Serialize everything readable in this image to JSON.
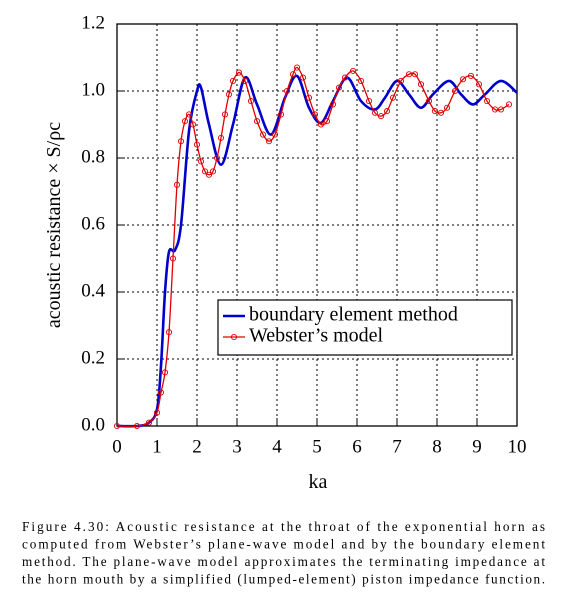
{
  "chart_data": {
    "type": "line",
    "xlabel": "ka",
    "ylabel": "acoustic resistance × S/ρc",
    "xlim": [
      0,
      10
    ],
    "ylim": [
      0,
      1.2
    ],
    "xticks": [
      0,
      1,
      2,
      3,
      4,
      5,
      6,
      7,
      8,
      9,
      10
    ],
    "yticks": [
      {
        "value": 0,
        "label": "0.0"
      },
      0.2,
      0.4,
      0.6,
      0.8,
      {
        "value": 1,
        "label": "1.0"
      },
      1.2
    ],
    "grid": true,
    "legend": "lower right",
    "series": [
      {
        "name": "boundary element method",
        "color": "#0000cc",
        "marker": false,
        "x": [
          0,
          0.5,
          0.8,
          1.0,
          1.1,
          1.2,
          1.3,
          1.45,
          1.6,
          1.8,
          2.0,
          2.1,
          2.3,
          2.6,
          2.9,
          3.2,
          3.5,
          3.85,
          4.2,
          4.5,
          4.8,
          5.1,
          5.4,
          5.75,
          6.1,
          6.45,
          6.7,
          7.0,
          7.3,
          7.6,
          7.9,
          8.3,
          8.6,
          8.9,
          9.2,
          9.6,
          10.0
        ],
        "values": [
          0,
          0,
          0.01,
          0.05,
          0.18,
          0.4,
          0.52,
          0.525,
          0.6,
          0.88,
          1.0,
          1.01,
          0.9,
          0.78,
          0.9,
          1.04,
          0.96,
          0.87,
          0.98,
          1.045,
          0.95,
          0.905,
          0.97,
          1.04,
          0.97,
          0.945,
          0.98,
          1.03,
          0.99,
          0.95,
          0.99,
          1.03,
          0.99,
          0.96,
          0.99,
          1.03,
          0.995
        ]
      },
      {
        "name": "Webster’s model",
        "color": "#e00000",
        "marker": true,
        "x": [
          0,
          0.5,
          0.8,
          1.0,
          1.1,
          1.2,
          1.3,
          1.4,
          1.5,
          1.6,
          1.7,
          1.8,
          1.9,
          2.0,
          2.1,
          2.2,
          2.3,
          2.4,
          2.5,
          2.6,
          2.7,
          2.8,
          2.9,
          3.05,
          3.2,
          3.35,
          3.5,
          3.65,
          3.8,
          3.95,
          4.1,
          4.25,
          4.4,
          4.5,
          4.65,
          4.8,
          4.95,
          5.1,
          5.25,
          5.4,
          5.55,
          5.7,
          5.9,
          6.1,
          6.3,
          6.45,
          6.6,
          6.75,
          6.9,
          7.1,
          7.3,
          7.45,
          7.6,
          7.8,
          7.95,
          8.1,
          8.25,
          8.45,
          8.65,
          8.85,
          9.05,
          9.25,
          9.45,
          9.6,
          9.8
        ],
        "values": [
          0,
          0,
          0.01,
          0.04,
          0.1,
          0.16,
          0.28,
          0.5,
          0.72,
          0.85,
          0.91,
          0.93,
          0.9,
          0.84,
          0.79,
          0.76,
          0.75,
          0.76,
          0.8,
          0.86,
          0.93,
          0.99,
          1.03,
          1.055,
          1.03,
          0.97,
          0.91,
          0.87,
          0.85,
          0.87,
          0.93,
          1.0,
          1.05,
          1.07,
          1.04,
          0.98,
          0.93,
          0.9,
          0.91,
          0.96,
          1.01,
          1.04,
          1.06,
          1.03,
          0.97,
          0.935,
          0.925,
          0.94,
          0.98,
          1.03,
          1.05,
          1.05,
          1.02,
          0.97,
          0.94,
          0.935,
          0.95,
          1.0,
          1.035,
          1.045,
          1.02,
          0.97,
          0.945,
          0.945,
          0.96
        ]
      }
    ],
    "caption": [
      "Figure 4.30: Acoustic resistance at the throat of the exponential horn as",
      "computed from Webster’s plane-wave model and by the boundary element",
      "method. The plane-wave model approximates the terminating impedance at",
      "the horn mouth by a simplified (lumped-element) piston impedance function."
    ]
  }
}
